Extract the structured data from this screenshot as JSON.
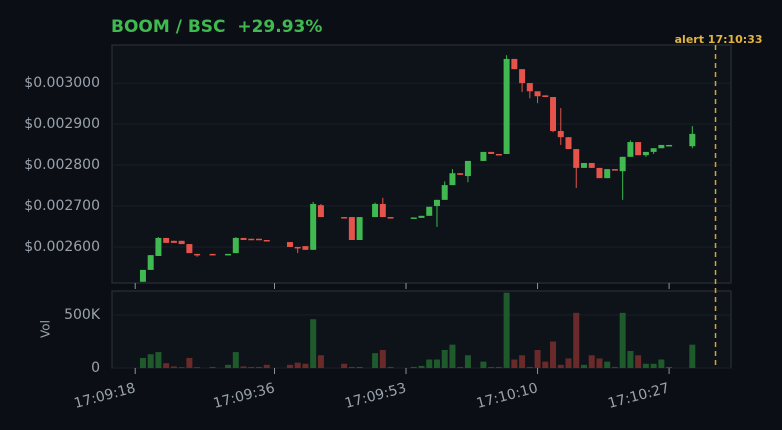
{
  "chart_data": {
    "type": "candlestick",
    "title": "BOOM / BSC  +29.93%",
    "y2label": "Vol",
    "annotation": {
      "label": "alert 17:10:33",
      "x": "17:10:33"
    },
    "up_color": "#3fb950",
    "down_color": "#e5534b",
    "volume_up_color": "#1e5a2c",
    "volume_down_color": "#6b2a2a",
    "grid": true,
    "xlim": [
      "17:09:15",
      "17:10:35"
    ],
    "xticks": [
      "17:09:18",
      "17:09:36",
      "17:09:53",
      "17:10:10",
      "17:10:27"
    ],
    "ylim": [
      0.002512,
      0.003093
    ],
    "yticks": [
      {
        "value": 0.0026,
        "label": "$0.002600"
      },
      {
        "value": 0.0027,
        "label": "$0.002700"
      },
      {
        "value": 0.0028,
        "label": "$0.002800"
      },
      {
        "value": 0.0029,
        "label": "$0.002900"
      },
      {
        "value": 0.003,
        "label": "$0.003000"
      }
    ],
    "y2lim": [
      0,
      726000
    ],
    "y2ticks": [
      0,
      {
        "value": 500000,
        "label": "500K"
      }
    ],
    "x": [
      "17:09:19",
      "17:09:20",
      "17:09:21",
      "17:09:22",
      "17:09:23",
      "17:09:24",
      "17:09:25",
      "17:09:26",
      "17:09:28",
      "17:09:30",
      "17:09:31",
      "17:09:32",
      "17:09:33",
      "17:09:34",
      "17:09:35",
      "17:09:38",
      "17:09:39",
      "17:09:40",
      "17:09:41",
      "17:09:42",
      "17:09:45",
      "17:09:46",
      "17:09:47",
      "17:09:49",
      "17:09:50",
      "17:09:51",
      "17:09:54",
      "17:09:55",
      "17:09:56",
      "17:09:57",
      "17:09:58",
      "17:09:59",
      "17:10:00",
      "17:10:01",
      "17:10:03",
      "17:10:04",
      "17:10:05",
      "17:10:06",
      "17:10:07",
      "17:10:08",
      "17:10:09",
      "17:10:10",
      "17:10:11",
      "17:10:12",
      "17:10:13",
      "17:10:14",
      "17:10:15",
      "17:10:16",
      "17:10:17",
      "17:10:18",
      "17:10:19",
      "17:10:20",
      "17:10:21",
      "17:10:22",
      "17:10:23",
      "17:10:24",
      "17:10:25",
      "17:10:26",
      "17:10:27",
      "17:10:30"
    ],
    "open": [
      0.002515,
      0.002544,
      0.002578,
      0.002622,
      0.002615,
      0.002615,
      0.002607,
      0.002583,
      0.002583,
      0.00258,
      0.002585,
      0.002622,
      0.00262,
      0.00262,
      0.002617,
      0.002612,
      0.0026,
      0.002602,
      0.002593,
      0.002702,
      0.002673,
      0.002673,
      0.002617,
      0.002673,
      0.002705,
      0.002673,
      0.002671,
      0.002671,
      0.002676,
      0.0027,
      0.002715,
      0.002751,
      0.00278,
      0.002773,
      0.00281,
      0.002832,
      0.002827,
      0.002827,
      0.003059,
      0.003034,
      0.003,
      0.00298,
      0.00297,
      0.002966,
      0.002883,
      0.002868,
      0.002839,
      0.002793,
      0.002805,
      0.002793,
      0.002768,
      0.00279,
      0.002785,
      0.00282,
      0.002856,
      0.002824,
      0.002832,
      0.002841,
      0.002846,
      0.002846
    ],
    "high": [
      0.002544,
      0.00258,
      0.002624,
      0.002622,
      0.002615,
      0.002615,
      0.002607,
      0.002583,
      0.002583,
      0.002583,
      0.002624,
      0.002622,
      0.00262,
      0.00262,
      0.002617,
      0.002612,
      0.0026,
      0.002602,
      0.00271,
      0.002705,
      0.002673,
      0.002673,
      0.002673,
      0.002708,
      0.00272,
      0.002673,
      0.002672,
      0.002676,
      0.002698,
      0.002715,
      0.00276,
      0.00279,
      0.00278,
      0.00281,
      0.002832,
      0.002832,
      0.002827,
      0.003068,
      0.003059,
      0.003034,
      0.003,
      0.00298,
      0.00297,
      0.002966,
      0.002939,
      0.002868,
      0.002839,
      0.002805,
      0.002805,
      0.002793,
      0.00279,
      0.00279,
      0.00282,
      0.00286,
      0.002856,
      0.002832,
      0.002841,
      0.002849,
      0.002849,
      0.002895
    ],
    "low": [
      0.002515,
      0.002544,
      0.002578,
      0.00261,
      0.00261,
      0.002607,
      0.002585,
      0.002576,
      0.002581,
      0.00258,
      0.002585,
      0.002617,
      0.002617,
      0.002617,
      0.002614,
      0.0026,
      0.002585,
      0.002593,
      0.002593,
      0.002673,
      0.002671,
      0.002617,
      0.002617,
      0.002673,
      0.002673,
      0.002671,
      0.002671,
      0.002671,
      0.002676,
      0.002649,
      0.002715,
      0.002751,
      0.002776,
      0.002758,
      0.00281,
      0.002827,
      0.002825,
      0.002827,
      0.003034,
      0.002978,
      0.002963,
      0.002951,
      0.002966,
      0.00288,
      0.002849,
      0.002839,
      0.002744,
      0.002793,
      0.002793,
      0.002768,
      0.002768,
      0.002788,
      0.002715,
      0.00282,
      0.002824,
      0.00282,
      0.002827,
      0.002841,
      0.002846,
      0.002841
    ],
    "close": [
      0.002544,
      0.00258,
      0.002622,
      0.00261,
      0.00261,
      0.002607,
      0.002585,
      0.002581,
      0.002581,
      0.002583,
      0.002622,
      0.002617,
      0.002617,
      0.002617,
      0.002614,
      0.0026,
      0.002598,
      0.002593,
      0.002705,
      0.002673,
      0.002671,
      0.002617,
      0.002673,
      0.002705,
      0.002673,
      0.002671,
      0.002672,
      0.002676,
      0.002698,
      0.002715,
      0.002751,
      0.00278,
      0.002776,
      0.00281,
      0.002832,
      0.002827,
      0.002825,
      0.003059,
      0.003034,
      0.003,
      0.00298,
      0.002968,
      0.002966,
      0.002883,
      0.002868,
      0.002839,
      0.002793,
      0.002805,
      0.002793,
      0.002768,
      0.00279,
      0.002788,
      0.00282,
      0.002856,
      0.002824,
      0.002832,
      0.002841,
      0.002849,
      0.002849,
      0.002876
    ],
    "volume": [
      95000,
      130000,
      150000,
      45000,
      15000,
      8000,
      95000,
      8000,
      10000,
      30000,
      150000,
      15000,
      10000,
      10000,
      30000,
      30000,
      50000,
      40000,
      460000,
      120000,
      40000,
      10000,
      10000,
      140000,
      170000,
      10000,
      10000,
      20000,
      80000,
      80000,
      170000,
      220000,
      10000,
      120000,
      60000,
      10000,
      10000,
      710000,
      80000,
      120000,
      10000,
      170000,
      60000,
      250000,
      30000,
      90000,
      520000,
      30000,
      120000,
      90000,
      60000,
      10000,
      520000,
      160000,
      120000,
      40000,
      40000,
      80000,
      10000,
      220000
    ]
  }
}
